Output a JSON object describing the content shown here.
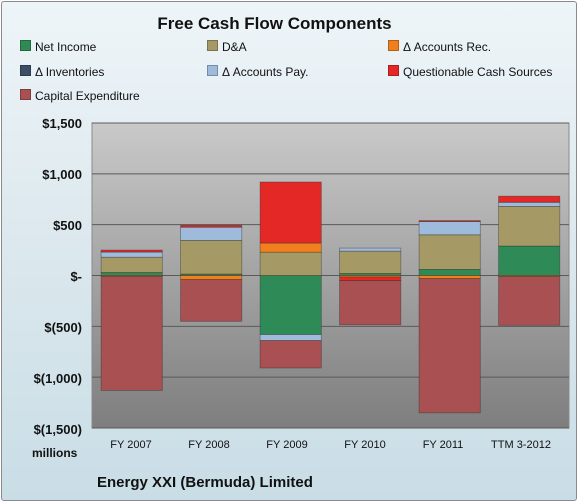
{
  "chart_data": {
    "type": "bar",
    "stacked": true,
    "title": "Free Cash Flow Components",
    "categories": [
      "FY 2007",
      "FY 2008",
      "FY 2009",
      "FY 2010",
      "FY 2011",
      "TTM 3-2012"
    ],
    "units_label": "millions",
    "company": "Energy XXI (Bermuda) Limited",
    "ylim": [
      -1500,
      1500
    ],
    "y_ticks": [
      1500,
      1000,
      500,
      0,
      -500,
      -1000,
      -1500
    ],
    "y_tick_labels": [
      "$1,500",
      "$1,000",
      "$500",
      "$-",
      "$(500)",
      "$(1,000)",
      "$(1,500)"
    ],
    "grid": true,
    "legend_position": "top",
    "series": [
      {
        "name": "Net Income",
        "color": "#2e8b57",
        "values": [
          30,
          15,
          -580,
          20,
          60,
          290
        ]
      },
      {
        "name": "D&A",
        "color": "#a59a66",
        "values": [
          150,
          330,
          230,
          220,
          340,
          390
        ]
      },
      {
        "name": "Δ Accounts Rec.",
        "color": "#f07f1e",
        "values": [
          -10,
          -40,
          90,
          -15,
          -30,
          -10
        ]
      },
      {
        "name": "Δ Inventories",
        "color": "#3b4f66",
        "values": [
          0,
          0,
          0,
          0,
          0,
          0
        ]
      },
      {
        "name": "Δ Accounts Pay.",
        "color": "#9fbbdc",
        "values": [
          50,
          130,
          -60,
          30,
          130,
          40
        ]
      },
      {
        "name": "Questionable Cash Sources",
        "color": "#e32826",
        "values": [
          20,
          20,
          600,
          -35,
          10,
          60
        ]
      },
      {
        "name": "Capital Expenditure",
        "color": "#a85052",
        "values": [
          -1120,
          -410,
          -270,
          -435,
          -1320,
          -480
        ]
      }
    ]
  }
}
